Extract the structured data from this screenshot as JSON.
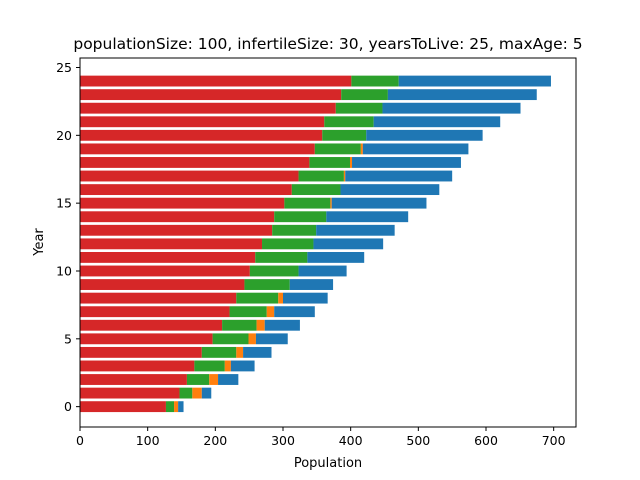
{
  "chart_data": {
    "type": "bar",
    "orientation": "horizontal",
    "stacked": true,
    "title": "populationSize: 100, infertileSize: 30, yearsToLive: 25, maxAge: 5",
    "xlabel": "Population",
    "ylabel": "Year",
    "xlim": [
      0,
      733
    ],
    "ylim": [
      -1.5,
      25.7
    ],
    "xticks": [
      0,
      100,
      200,
      300,
      400,
      500,
      600,
      700
    ],
    "yticks": [
      0,
      5,
      10,
      15,
      20,
      25
    ],
    "grid": false,
    "legend": "none",
    "years": [
      0,
      1,
      2,
      3,
      4,
      5,
      6,
      7,
      8,
      9,
      10,
      11,
      12,
      13,
      14,
      15,
      16,
      17,
      18,
      19,
      20,
      21,
      22,
      23,
      24
    ],
    "series": [
      {
        "color": "#d62728",
        "values": [
          127,
          147,
          158,
          169,
          180,
          196,
          210,
          221,
          231,
          243,
          251,
          259,
          269,
          284,
          287,
          302,
          313,
          323,
          339,
          347,
          358,
          361,
          378,
          386,
          401
        ]
      },
      {
        "color": "#2ca02c",
        "values": [
          12,
          19,
          33,
          45,
          51,
          53,
          51,
          55,
          62,
          67,
          72,
          77,
          76,
          65,
          77,
          68,
          72,
          67,
          60,
          68,
          65,
          73,
          69,
          69,
          70
        ]
      },
      {
        "color": "#ff7f0e",
        "values": [
          6,
          14,
          13,
          9,
          10,
          11,
          12,
          11,
          7,
          0,
          0,
          0,
          0,
          0,
          0,
          2,
          0,
          2,
          3,
          3,
          0,
          0,
          0,
          0,
          0
        ]
      },
      {
        "color": "#1f77b4",
        "values": [
          8,
          14,
          30,
          35,
          42,
          47,
          52,
          60,
          66,
          64,
          71,
          84,
          103,
          116,
          121,
          140,
          146,
          158,
          161,
          156,
          172,
          187,
          204,
          220,
          225
        ]
      }
    ]
  }
}
